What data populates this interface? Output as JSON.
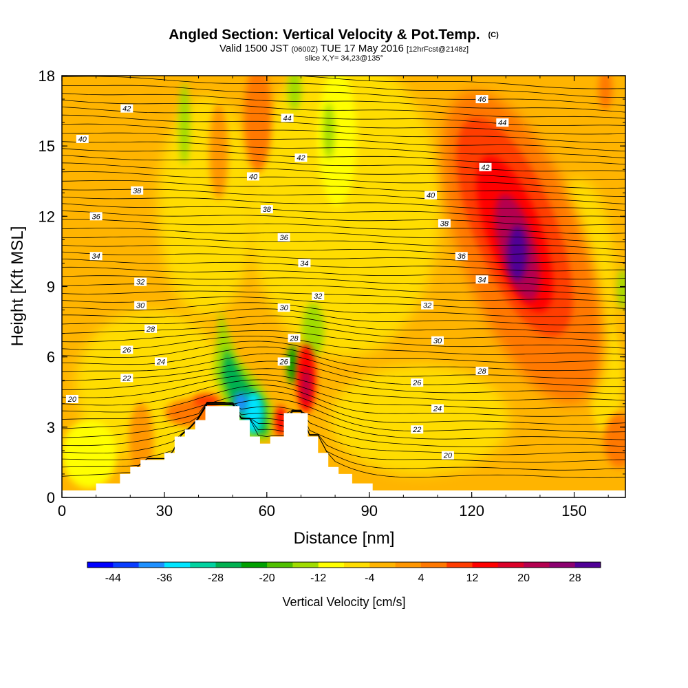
{
  "chart_data": {
    "type": "contour",
    "title": {
      "main": "Angled Section: Vertical Velocity & Pot.Temp.",
      "main_unit": "(C)",
      "valid_prefix": "Valid 1500 JST",
      "valid_utc": "(0600Z)",
      "valid_date": "TUE 17 May 2016",
      "forecast": "[12hrFcst@2148z]",
      "slice": "slice X,Y= 34,23@135°"
    },
    "xlabel": "Distance [nm]",
    "ylabel": "Height [Kft MSL]",
    "xlim": [
      0,
      165
    ],
    "ylim": [
      0,
      18
    ],
    "xticks": [
      0,
      30,
      60,
      90,
      120,
      150
    ],
    "yticks": [
      0,
      3,
      6,
      9,
      12,
      15,
      18
    ],
    "colorbar": {
      "label": "Vertical Velocity [cm/s]",
      "tick_values": [
        -44,
        -36,
        -28,
        -20,
        -12,
        -4,
        4,
        12,
        20,
        28
      ],
      "colors": [
        "#0000ff",
        "#0a3dff",
        "#1e90ff",
        "#00e5ff",
        "#00d2a0",
        "#00b050",
        "#00a000",
        "#50c000",
        "#a0dc00",
        "#ffff00",
        "#ffdd00",
        "#ffb400",
        "#ff9600",
        "#ff7800",
        "#ff3c00",
        "#ff0000",
        "#dc0028",
        "#b40050",
        "#8c0070",
        "#500096"
      ]
    },
    "terrain_kft": [
      [
        0,
        0.3
      ],
      [
        10,
        0.3
      ],
      [
        10,
        0.6
      ],
      [
        17,
        0.6
      ],
      [
        17,
        1.0
      ],
      [
        20,
        1.0
      ],
      [
        20,
        1.3
      ],
      [
        23,
        1.3
      ],
      [
        23,
        1.6
      ],
      [
        30,
        1.6
      ],
      [
        30,
        1.9
      ],
      [
        33,
        1.9
      ],
      [
        33,
        2.6
      ],
      [
        36,
        2.6
      ],
      [
        36,
        2.9
      ],
      [
        39,
        2.9
      ],
      [
        39,
        3.3
      ],
      [
        42,
        3.3
      ],
      [
        42,
        3.9
      ],
      [
        52,
        3.9
      ],
      [
        52,
        3.3
      ],
      [
        55,
        3.3
      ],
      [
        55,
        2.6
      ],
      [
        58,
        2.6
      ],
      [
        58,
        2.3
      ],
      [
        61,
        2.3
      ],
      [
        61,
        2.6
      ],
      [
        65,
        2.6
      ],
      [
        65,
        3.6
      ],
      [
        72,
        3.6
      ],
      [
        72,
        2.6
      ],
      [
        75,
        2.6
      ],
      [
        75,
        1.9
      ],
      [
        78,
        1.9
      ],
      [
        78,
        1.3
      ],
      [
        81,
        1.3
      ],
      [
        81,
        1.0
      ],
      [
        85,
        1.0
      ],
      [
        85,
        0.6
      ],
      [
        91,
        0.6
      ],
      [
        91,
        0.3
      ],
      [
        165,
        0.3
      ]
    ],
    "contour_labels": [
      {
        "value": "46",
        "x": 123,
        "y": 17.0
      },
      {
        "value": "44",
        "x": 129,
        "y": 16.0
      },
      {
        "value": "44",
        "x": 66,
        "y": 16.2
      },
      {
        "value": "42",
        "x": 19,
        "y": 16.6
      },
      {
        "value": "42",
        "x": 70,
        "y": 14.5
      },
      {
        "value": "42",
        "x": 124,
        "y": 14.1
      },
      {
        "value": "40",
        "x": 6,
        "y": 15.3
      },
      {
        "value": "40",
        "x": 56,
        "y": 13.7
      },
      {
        "value": "40",
        "x": 108,
        "y": 12.9
      },
      {
        "value": "38",
        "x": 22,
        "y": 13.1
      },
      {
        "value": "38",
        "x": 60,
        "y": 12.3
      },
      {
        "value": "38",
        "x": 112,
        "y": 11.7
      },
      {
        "value": "36",
        "x": 10,
        "y": 12.0
      },
      {
        "value": "36",
        "x": 65,
        "y": 11.1
      },
      {
        "value": "36",
        "x": 117,
        "y": 10.3
      },
      {
        "value": "34",
        "x": 10,
        "y": 10.3
      },
      {
        "value": "34",
        "x": 71,
        "y": 10.0
      },
      {
        "value": "34",
        "x": 123,
        "y": 9.3
      },
      {
        "value": "32",
        "x": 23,
        "y": 9.2
      },
      {
        "value": "32",
        "x": 75,
        "y": 8.6
      },
      {
        "value": "32",
        "x": 107,
        "y": 8.2
      },
      {
        "value": "30",
        "x": 23,
        "y": 8.2
      },
      {
        "value": "30",
        "x": 65,
        "y": 8.1
      },
      {
        "value": "30",
        "x": 110,
        "y": 6.7
      },
      {
        "value": "28",
        "x": 26,
        "y": 7.2
      },
      {
        "value": "28",
        "x": 68,
        "y": 6.8
      },
      {
        "value": "28",
        "x": 123,
        "y": 5.4
      },
      {
        "value": "26",
        "x": 19,
        "y": 6.3
      },
      {
        "value": "26",
        "x": 65,
        "y": 5.8
      },
      {
        "value": "26",
        "x": 104,
        "y": 4.9
      },
      {
        "value": "24",
        "x": 29,
        "y": 5.8
      },
      {
        "value": "24",
        "x": 110,
        "y": 3.8
      },
      {
        "value": "22",
        "x": 19,
        "y": 5.1
      },
      {
        "value": "22",
        "x": 104,
        "y": 2.9
      },
      {
        "value": "20",
        "x": 3,
        "y": 4.2
      },
      {
        "value": "20",
        "x": 113,
        "y": 1.8
      }
    ]
  }
}
